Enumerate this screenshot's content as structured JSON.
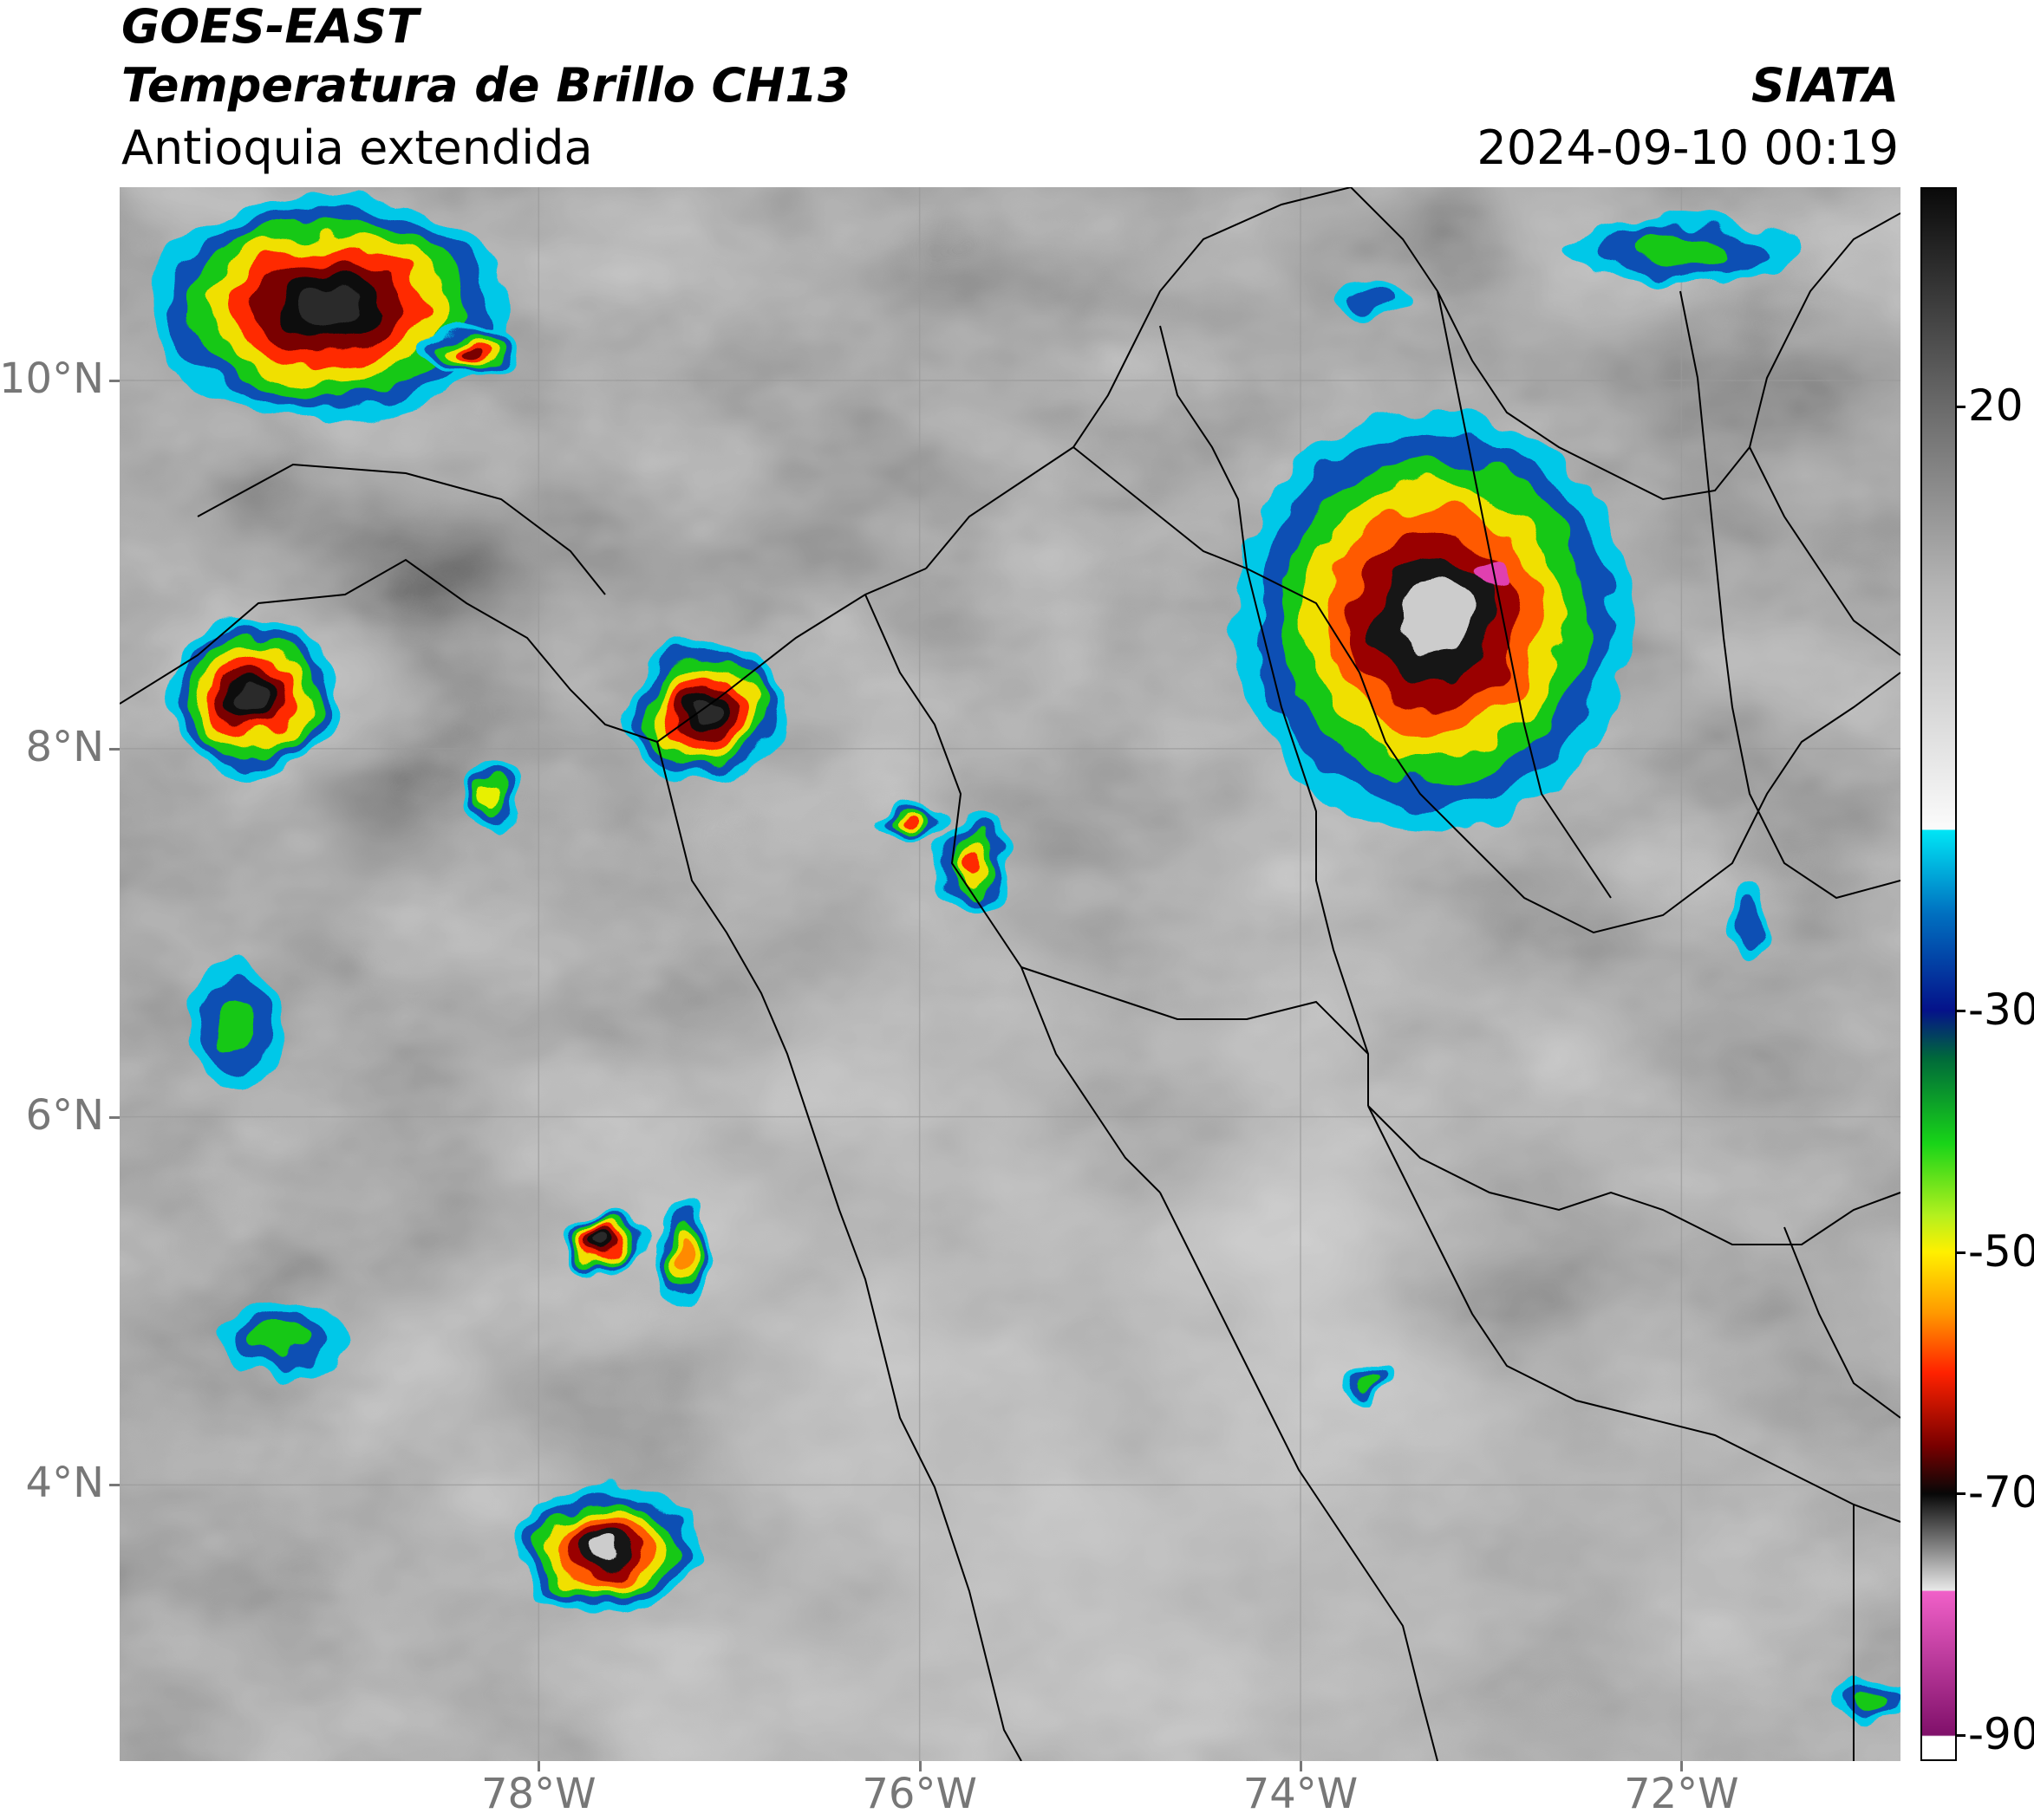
{
  "header": {
    "satellite": "GOES-EAST",
    "product": "Temperatura de Brillo CH13",
    "region": "Antioquia extendida",
    "agency": "SIATA",
    "datetime": "2024-09-10 00:19"
  },
  "map": {
    "extent": {
      "lon_min": -80.2,
      "lon_max": -70.85,
      "lat_min": 2.5,
      "lat_max": 11.05
    },
    "lat_ticks": [
      {
        "value": 10,
        "label": "10°N"
      },
      {
        "value": 8,
        "label": "8°N"
      },
      {
        "value": 6,
        "label": "6°N"
      },
      {
        "value": 4,
        "label": "4°N"
      }
    ],
    "lon_ticks": [
      {
        "value": -78,
        "label": "78°W"
      },
      {
        "value": -76,
        "label": "76°W"
      },
      {
        "value": -74,
        "label": "74°W"
      },
      {
        "value": -72,
        "label": "72°W"
      }
    ],
    "gridlines": true,
    "storm_cells": [
      {
        "lon": -79.1,
        "lat": 10.4,
        "peak": "black",
        "rx": 0.95,
        "ry": 0.62
      },
      {
        "lon": -78.35,
        "lat": 10.15,
        "peak": "dark-red",
        "rx": 0.25,
        "ry": 0.15
      },
      {
        "lon": -79.5,
        "lat": 8.28,
        "peak": "black",
        "rx": 0.45,
        "ry": 0.42
      },
      {
        "lon": -77.12,
        "lat": 8.2,
        "peak": "black",
        "rx": 0.42,
        "ry": 0.38
      },
      {
        "lon": -78.25,
        "lat": 7.72,
        "peak": "yellow",
        "rx": 0.14,
        "ry": 0.2
      },
      {
        "lon": -76.05,
        "lat": 7.62,
        "peak": "red",
        "rx": 0.18,
        "ry": 0.12
      },
      {
        "lon": -75.72,
        "lat": 7.38,
        "peak": "red",
        "rx": 0.2,
        "ry": 0.26
      },
      {
        "lon": -73.3,
        "lat": 8.7,
        "peak": "white-core",
        "rx": 1.05,
        "ry": 1.15
      },
      {
        "lon": -77.65,
        "lat": 5.32,
        "peak": "black",
        "rx": 0.22,
        "ry": 0.17
      },
      {
        "lon": -77.25,
        "lat": 5.25,
        "peak": "orange",
        "rx": 0.16,
        "ry": 0.28
      },
      {
        "lon": -77.65,
        "lat": 3.65,
        "peak": "white-core",
        "rx": 0.48,
        "ry": 0.35
      },
      {
        "lon": -73.65,
        "lat": 4.55,
        "peak": "green",
        "rx": 0.13,
        "ry": 0.08
      },
      {
        "lon": -72.0,
        "lat": 10.7,
        "peak": "green",
        "rx": 0.6,
        "ry": 0.18
      },
      {
        "lon": -73.6,
        "lat": 10.45,
        "peak": "blue",
        "rx": 0.2,
        "ry": 0.1
      },
      {
        "lon": -71.0,
        "lat": 2.85,
        "peak": "green",
        "rx": 0.22,
        "ry": 0.12
      },
      {
        "lon": -71.65,
        "lat": 7.05,
        "peak": "blue",
        "rx": 0.1,
        "ry": 0.18
      },
      {
        "lon": -79.6,
        "lat": 6.5,
        "peak": "green",
        "rx": 0.25,
        "ry": 0.35
      },
      {
        "lon": -79.35,
        "lat": 4.8,
        "peak": "green",
        "rx": 0.35,
        "ry": 0.2
      }
    ]
  },
  "colorbar": {
    "ticks": [
      {
        "value": 20,
        "label": "20"
      },
      {
        "value": -30,
        "label": "-30"
      },
      {
        "value": -50,
        "label": "-50"
      },
      {
        "value": -70,
        "label": "-70"
      },
      {
        "value": -90,
        "label": "-90"
      }
    ],
    "range": [
      -92,
      38
    ],
    "stops": [
      {
        "value": 38,
        "color": "#0a0a0a"
      },
      {
        "value": 20,
        "color": "#6a6a6a"
      },
      {
        "value": 5,
        "color": "#b4b4b4"
      },
      {
        "value": -15,
        "color": "#fbfbfb"
      },
      {
        "value": -15.1,
        "color": "#00e5f5"
      },
      {
        "value": -22,
        "color": "#0070c0"
      },
      {
        "value": -30,
        "color": "#05128a"
      },
      {
        "value": -34,
        "color": "#006a3a"
      },
      {
        "value": -41,
        "color": "#18d418"
      },
      {
        "value": -47,
        "color": "#b4f01e"
      },
      {
        "value": -50,
        "color": "#fff000"
      },
      {
        "value": -55,
        "color": "#ff9a00"
      },
      {
        "value": -60,
        "color": "#ff2200"
      },
      {
        "value": -66,
        "color": "#7a0000"
      },
      {
        "value": -70,
        "color": "#070707"
      },
      {
        "value": -78,
        "color": "#e8e8e8"
      },
      {
        "value": -78.1,
        "color": "#f060c8"
      },
      {
        "value": -90,
        "color": "#80106a"
      },
      {
        "value": -90.1,
        "color": "#ffffff"
      }
    ]
  }
}
